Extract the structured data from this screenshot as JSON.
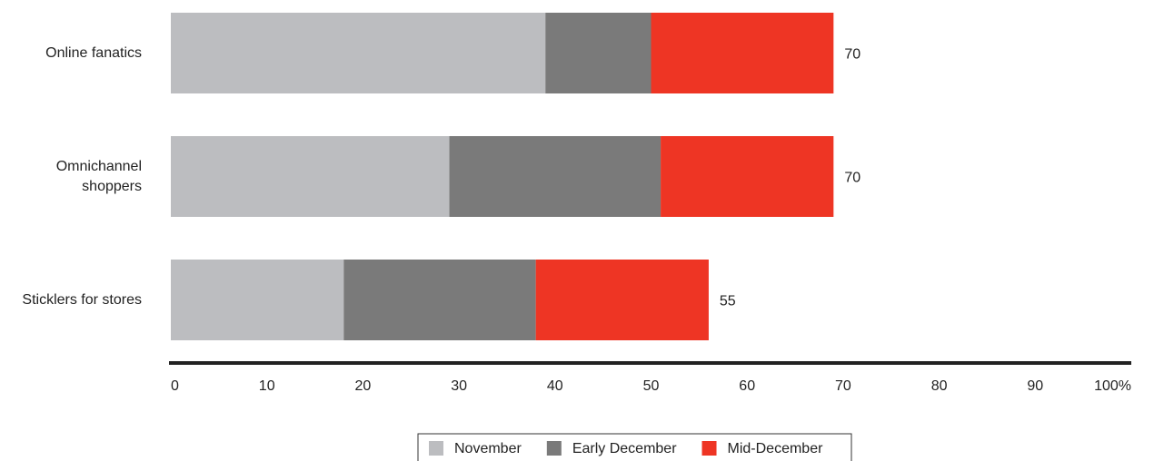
{
  "chart_data": {
    "type": "stacked_bar_horizontal",
    "categories": [
      "Online fanatics",
      "Omnichannel\nshoppers",
      "Sticklers for stores"
    ],
    "series": [
      {
        "name": "November",
        "color": "#bcbdc0",
        "values": [
          39,
          29,
          18
        ]
      },
      {
        "name": "Early December",
        "color": "#7a7a7a",
        "values": [
          11,
          22,
          20
        ]
      },
      {
        "name": "Mid-December",
        "color": "#ee3524",
        "values": [
          19,
          18,
          18
        ]
      }
    ],
    "totals": [
      70,
      70,
      55
    ],
    "xlim": [
      0,
      100
    ],
    "xticks": [
      0,
      10,
      20,
      30,
      40,
      50,
      60,
      70,
      80,
      90,
      {
        "value": 100,
        "label": "100%"
      }
    ]
  }
}
